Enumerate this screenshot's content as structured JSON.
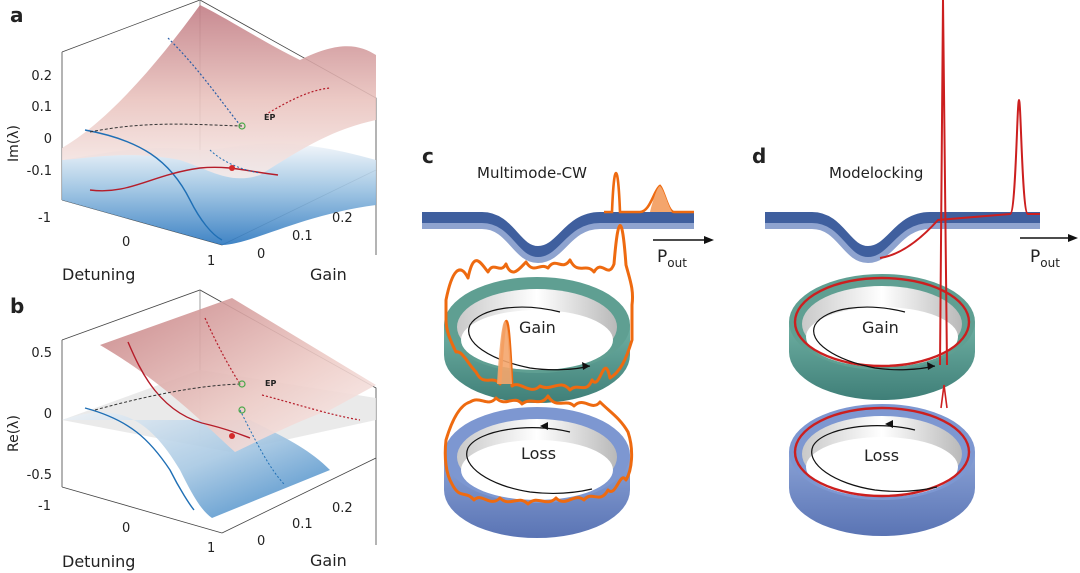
{
  "panels": {
    "a": {
      "label": "a",
      "ylabel": "Im(λ)",
      "zticks": [
        "0.2",
        "0.1",
        "0",
        "-0.1"
      ],
      "xticks": [
        "-1",
        "0",
        "1"
      ],
      "xlabel": "Detuning",
      "gain_ticks": [
        "0",
        "0.1",
        "0.2"
      ],
      "gain_label": "Gain",
      "ep": "EP"
    },
    "b": {
      "label": "b",
      "ylabel": "Re(λ)",
      "zticks": [
        "0.5",
        "0",
        "-0.5"
      ],
      "xticks": [
        "-1",
        "0",
        "1"
      ],
      "xlabel": "Detuning",
      "gain_ticks": [
        "0",
        "0.1",
        "0.2"
      ],
      "gain_label": "Gain",
      "ep": "EP"
    },
    "c": {
      "label": "c",
      "title": "Multimode-CW",
      "gain_ring": "Gain",
      "loss_ring": "Loss",
      "pout_main": "P",
      "pout_sub": "out"
    },
    "d": {
      "label": "d",
      "title": "Modelocking",
      "gain_ring": "Gain",
      "loss_ring": "Loss",
      "pout_main": "P",
      "pout_sub": "out"
    }
  },
  "colors": {
    "upper_sheet": "#c98f8f",
    "lower_sheet": "#3e86c7",
    "gain_ring": "#4f9a8e",
    "loss_ring": "#6a86c4",
    "waveguide": "#3f5f9e",
    "cw_field": "#ee6a10",
    "modelock_field": "#cc1f1f",
    "red_curve": "#b51d2a",
    "blue_curve": "#1f6fb5"
  }
}
